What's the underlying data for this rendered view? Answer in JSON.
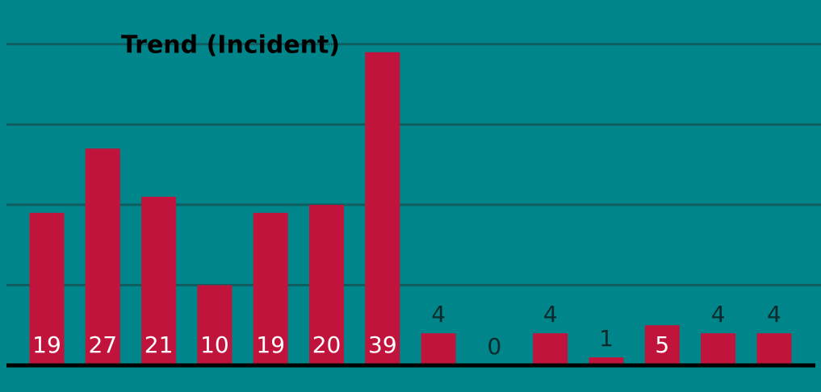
{
  "chart_data": {
    "type": "bar",
    "title": "Trend (Incident)",
    "categories": [
      null,
      null,
      null,
      null,
      null,
      null,
      null,
      null,
      null,
      null,
      null,
      null,
      null,
      null
    ],
    "values": [
      19,
      27,
      21,
      10,
      19,
      20,
      39,
      4,
      0,
      4,
      1,
      5,
      4,
      4
    ],
    "color": "#c0143c",
    "ylim": [
      0,
      45
    ],
    "yticks": [
      0,
      10,
      20,
      30,
      40
    ],
    "grid": true
  }
}
